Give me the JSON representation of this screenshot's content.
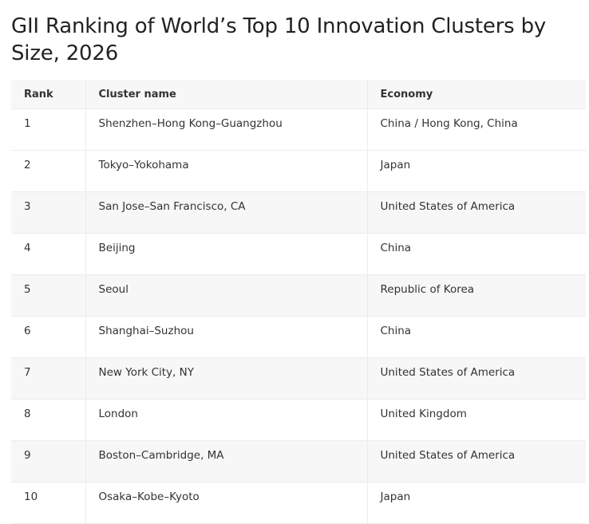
{
  "title": "GII Ranking of World’s Top 10 Innovation Clusters by Size, 2026",
  "table": {
    "headers": {
      "rank": "Rank",
      "cluster": "Cluster name",
      "economy": "Economy"
    },
    "rows": [
      {
        "rank": "1",
        "cluster": "Shenzhen–Hong Kong–Guangzhou",
        "economy": "China / Hong Kong, China"
      },
      {
        "rank": "2",
        "cluster": "Tokyo–Yokohama",
        "economy": "Japan"
      },
      {
        "rank": "3",
        "cluster": "San Jose–San Francisco, CA",
        "economy": "United States of America"
      },
      {
        "rank": "4",
        "cluster": "Beijing",
        "economy": "China"
      },
      {
        "rank": "5",
        "cluster": "Seoul",
        "economy": "Republic of Korea"
      },
      {
        "rank": "6",
        "cluster": "Shanghai–Suzhou",
        "economy": "China"
      },
      {
        "rank": "7",
        "cluster": "New York City, NY",
        "economy": "United States of America"
      },
      {
        "rank": "8",
        "cluster": "London",
        "economy": "United Kingdom"
      },
      {
        "rank": "9",
        "cluster": "Boston–Cambridge, MA",
        "economy": "United States of America"
      },
      {
        "rank": "10",
        "cluster": "Osaka–Kobe–Kyoto",
        "economy": "Japan"
      }
    ]
  }
}
